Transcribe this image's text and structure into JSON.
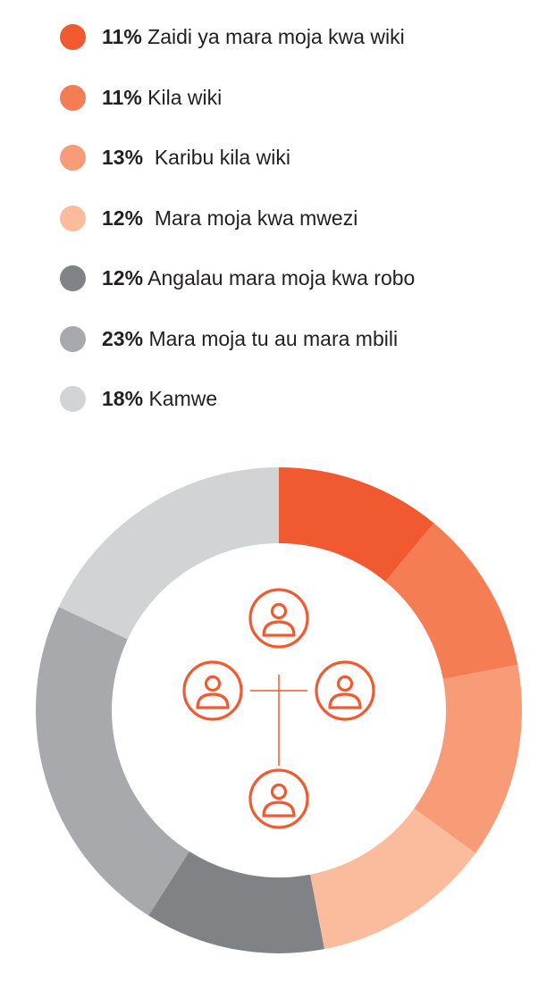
{
  "chart_data": {
    "type": "pie",
    "variant": "donut",
    "legend_position": "top",
    "values": [
      11,
      11,
      13,
      12,
      12,
      23,
      18
    ],
    "series": [
      {
        "value_label": "11%",
        "label": "Zaidi ya mara moja kwa wiki",
        "value": 11,
        "color": "#f15a31"
      },
      {
        "value_label": "11%",
        "label": "Kila wiki",
        "value": 11,
        "color": "#f47d53"
      },
      {
        "value_label": "13%",
        "label": " Karibu kila wiki",
        "value": 13,
        "color": "#f89c78"
      },
      {
        "value_label": "12%",
        "label": " Mara moja kwa mwezi",
        "value": 12,
        "color": "#fbbc9d"
      },
      {
        "value_label": "12%",
        "label": "Angalau mara moja kwa robo",
        "value": 12,
        "color": "#808285"
      },
      {
        "value_label": "23%",
        "label": "Mara moja tu au mara mbili",
        "value": 23,
        "color": "#a7a9ac"
      },
      {
        "value_label": "18%",
        "label": "Kamwe",
        "value": 18,
        "color": "#d1d3d4"
      }
    ],
    "center_icon": "people-network-icon",
    "center_icon_color": "#f15a31"
  }
}
